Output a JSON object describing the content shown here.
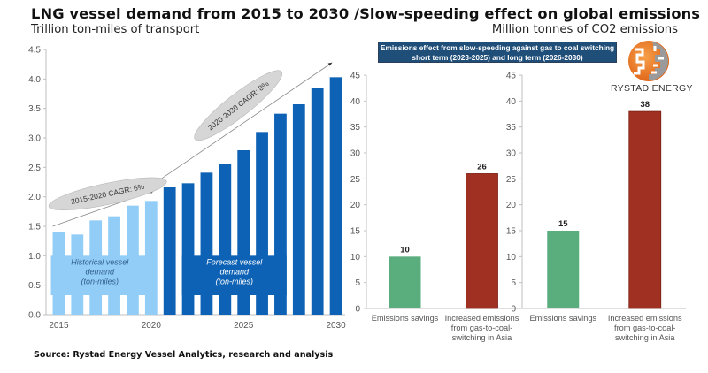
{
  "header": {
    "title": "LNG vessel demand from 2015 to 2030 /Slow-speeding effect on global emissions",
    "subtitle_left": "Trillion ton-miles of transport",
    "subtitle_right": "Million tonnes of CO2 emissions"
  },
  "banner": {
    "line1": "Emissions effect from slow-speeding against gas to coal switching",
    "line2": "short term (2023-2025) and long term (2026-2030)"
  },
  "logo": {
    "icon": "globe-logo-icon",
    "text": "RYSTAD ENERGY"
  },
  "footer": {
    "source": "Source: Rystad Energy Vessel Analytics, research and analysis"
  },
  "colors": {
    "historical": "#92cdf7",
    "forecast": "#0d62b5",
    "savings": "#5aae7e",
    "increase": "#a03122",
    "banner": "#1f4e79",
    "axis": "#bfbfbf",
    "ellipse": "#d6d6d6"
  },
  "chart_data": [
    {
      "type": "bar",
      "title": "LNG vessel demand from 2015 to 2030",
      "ylabel": "Trillion ton-miles of transport",
      "xlabel": "",
      "ylim": [
        0,
        4.5
      ],
      "yticks": [
        "0.0",
        "0.5",
        "1.0",
        "1.5",
        "2.0",
        "2.5",
        "3.0",
        "3.5",
        "4.0",
        "4.5"
      ],
      "xtick_labels": [
        "2015",
        "2020",
        "2025",
        "2030"
      ],
      "categories": [
        "2015",
        "2016",
        "2017",
        "2018",
        "2019",
        "2020",
        "2021",
        "2022",
        "2023",
        "2024",
        "2025",
        "2026",
        "2027",
        "2028",
        "2029",
        "2030"
      ],
      "series": [
        {
          "name": "Historical vessel demand (ton-miles)",
          "values": [
            1.41,
            1.36,
            1.6,
            1.67,
            1.85,
            1.93,
            null,
            null,
            null,
            null,
            null,
            null,
            null,
            null,
            null,
            null
          ]
        },
        {
          "name": "Forecast vessel demand (ton-miles)",
          "values": [
            null,
            null,
            null,
            null,
            null,
            null,
            2.16,
            2.23,
            2.41,
            2.55,
            2.79,
            3.1,
            3.41,
            3.57,
            3.85,
            4.03
          ]
        }
      ],
      "labels": {
        "historical": [
          "Historical vessel",
          "demand",
          "(ton-miles)"
        ],
        "forecast": [
          "Forecast vessel",
          "demand",
          "(ton-miles)"
        ]
      },
      "annotations": [
        "2015-2020 CAGR: 6%",
        "2020-2030 CAGR: 8%"
      ],
      "grid": false
    },
    {
      "type": "bar",
      "title": "Short term (2023-2025)",
      "ylabel": "Million tonnes of CO2 emissions",
      "ylim": [
        0,
        45
      ],
      "yticks": [
        "0",
        "5",
        "10",
        "15",
        "20",
        "25",
        "30",
        "35",
        "40",
        "45"
      ],
      "categories": [
        [
          "Emissions savings"
        ],
        [
          "Increased emissions",
          "from gas-to-coal-",
          "switching in Asia"
        ]
      ],
      "values": [
        10,
        26
      ],
      "value_labels": [
        "10",
        "26"
      ],
      "grid": false
    },
    {
      "type": "bar",
      "title": "Long term (2026-2030)",
      "ylabel": "Million tonnes of CO2 emissions",
      "ylim": [
        0,
        45
      ],
      "yticks": [
        "0",
        "5",
        "10",
        "15",
        "20",
        "25",
        "30",
        "35",
        "40",
        "45"
      ],
      "categories": [
        [
          "Emissions savings"
        ],
        [
          "Increased emissions",
          "from gas-to-coal-",
          "switching in Asia"
        ]
      ],
      "values": [
        15,
        38
      ],
      "value_labels": [
        "15",
        "38"
      ],
      "grid": false
    }
  ]
}
